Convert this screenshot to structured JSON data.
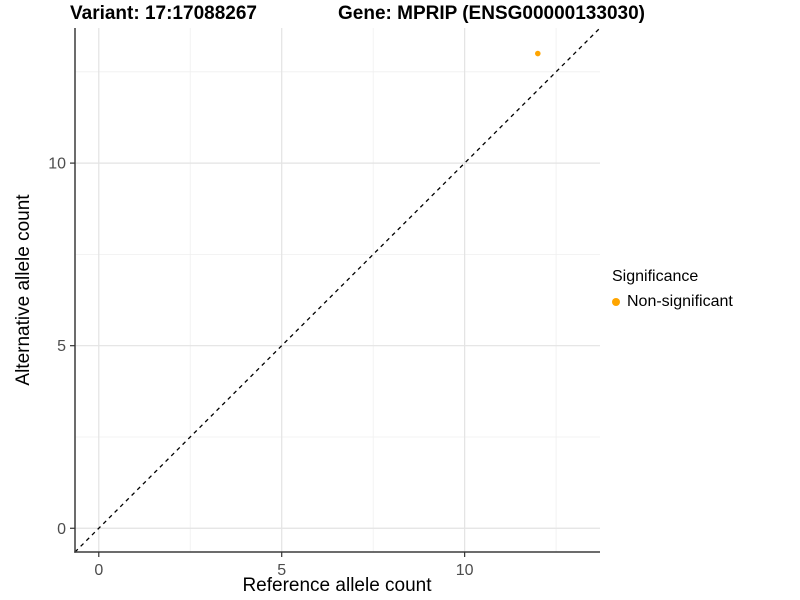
{
  "chart_data": {
    "type": "scatter",
    "titles": {
      "variant": "Variant: 17:17088267",
      "gene": "Gene: MPRIP (ENSG00000133030)"
    },
    "xlabel": "Reference allele count",
    "ylabel": "Alternative allele count",
    "xlim": [
      -0.65,
      13.7
    ],
    "ylim": [
      -0.65,
      13.7
    ],
    "x_major_ticks": [
      0,
      5,
      10
    ],
    "y_major_ticks": [
      0,
      5,
      10
    ],
    "x_minor_ticks": [
      2.5,
      7.5,
      12.5
    ],
    "y_minor_ticks": [
      2.5,
      7.5,
      12.5
    ],
    "grid": true,
    "legend": {
      "title": "Significance",
      "position": "right",
      "items": [
        {
          "label": "Non-significant",
          "color": "#FFA500"
        }
      ]
    },
    "series": [
      {
        "name": "Non-significant",
        "color": "#FFA500",
        "points": [
          {
            "x": 12,
            "y": 13
          }
        ]
      }
    ],
    "reference_line": {
      "type": "identity y = x",
      "style": "dashed",
      "color": "#000000"
    }
  },
  "style": {
    "background": "#FFFFFF",
    "grid_major_color": "#E3E3E3",
    "grid_minor_color": "#EFEFEF",
    "axis_line_color": "#3C3C3C",
    "tick_mark_color": "#333333",
    "tick_label_color": "#4D4D4D",
    "point_color": "#FFA500"
  }
}
